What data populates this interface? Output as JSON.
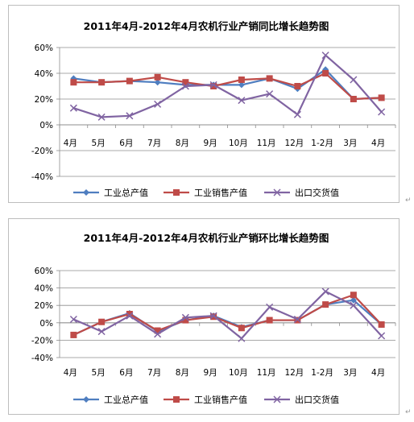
{
  "chart_data": [
    {
      "type": "line",
      "title": "2011年4月-2012年4月农机行业产销同比增长趋势图",
      "categories": [
        "4月",
        "5月",
        "6月",
        "7月",
        "8月",
        "9月",
        "10月",
        "11月",
        "12月",
        "1-2月",
        "3月",
        "4月"
      ],
      "yticks": [
        "60%",
        "40%",
        "20%",
        "0%",
        "-20%",
        "-40%"
      ],
      "ylim": [
        -40,
        60
      ],
      "grid": true,
      "legend": "bottom",
      "series": [
        {
          "name": "工业总产值",
          "values": [
            36,
            33,
            34,
            33,
            31,
            31,
            31,
            36,
            28,
            43,
            20,
            21
          ]
        },
        {
          "name": "工业销售产值",
          "values": [
            33,
            33,
            34,
            37,
            33,
            30,
            35,
            36,
            30,
            40,
            20,
            21
          ]
        },
        {
          "name": "出口交货值",
          "values": [
            13,
            6,
            7,
            16,
            30,
            31,
            19,
            24,
            8,
            54,
            35,
            10
          ]
        }
      ]
    },
    {
      "type": "line",
      "title": "2011年4月-2012年4月农机行业产销环比增长趋势图",
      "categories": [
        "4月",
        "5月",
        "6月",
        "7月",
        "8月",
        "9月",
        "10月",
        "11月",
        "12月",
        "1-2月",
        "3月",
        "4月"
      ],
      "yticks": [
        "60%",
        "40%",
        "20%",
        "0%",
        "-20%",
        "-40%"
      ],
      "ylim": [
        -40,
        60
      ],
      "grid": true,
      "legend": "bottom",
      "series": [
        {
          "name": "工业总产值",
          "values": [
            -14,
            1,
            11,
            -10,
            3,
            8,
            -5,
            3,
            3,
            21,
            26,
            -2
          ]
        },
        {
          "name": "工业销售产值",
          "values": [
            -14,
            1,
            10,
            -9,
            3,
            7,
            -6,
            3,
            3,
            21,
            32,
            -2
          ]
        },
        {
          "name": "出口交货值",
          "values": [
            4,
            -10,
            8,
            -13,
            6,
            8,
            -18,
            18,
            4,
            36,
            20,
            -15
          ]
        }
      ]
    }
  ],
  "colors": {
    "series": [
      "#4f7ec0",
      "#bf4b48",
      "#8064a2"
    ]
  }
}
